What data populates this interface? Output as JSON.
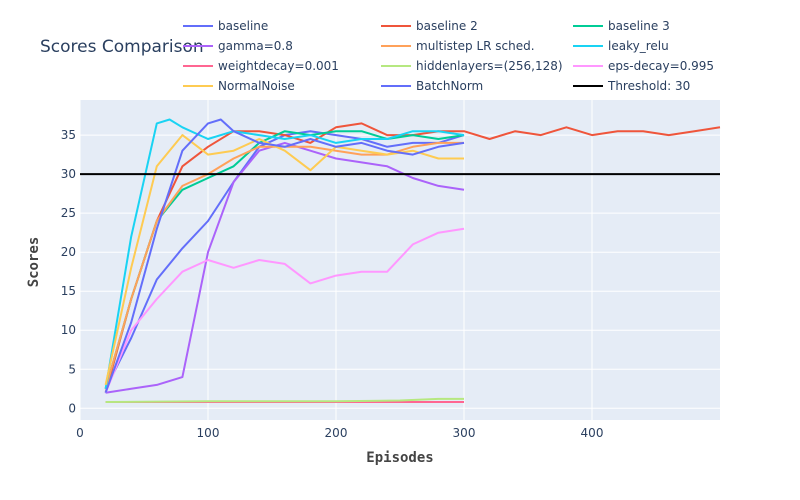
{
  "chart_data": {
    "type": "line",
    "title": "Scores Comparison",
    "xlabel": "Episodes",
    "ylabel": "Scores",
    "xlim": [
      0,
      500
    ],
    "ylim": [
      -1.5,
      39.5
    ],
    "xticks": [
      0,
      100,
      200,
      300,
      400
    ],
    "yticks": [
      0,
      5,
      10,
      15,
      20,
      25,
      30,
      35
    ],
    "grid": true,
    "legend_position": "top",
    "colors": {
      "plot_background": "#e5ecf6",
      "grid": "#ffffff",
      "text": "#2a3f5f"
    },
    "series": [
      {
        "name": "baseline",
        "color": "#636efa",
        "x": [
          20,
          40,
          60,
          80,
          100,
          120,
          140,
          160,
          180,
          200,
          220,
          240,
          260,
          280,
          300
        ],
        "y": [
          2.5,
          9,
          16.5,
          20.5,
          24,
          29,
          33.5,
          35,
          35.5,
          35,
          34.5,
          33.5,
          34,
          34,
          35
        ]
      },
      {
        "name": "baseline 2",
        "color": "#ef553b",
        "x": [
          20,
          40,
          60,
          80,
          100,
          120,
          140,
          160,
          180,
          200,
          220,
          240,
          260,
          280,
          300,
          320,
          340,
          360,
          380,
          400,
          420,
          440,
          460,
          480,
          500
        ],
        "y": [
          2,
          14,
          24,
          31,
          33.5,
          35.5,
          35.5,
          35,
          34,
          36,
          36.5,
          35,
          35,
          35.5,
          35.5,
          34.5,
          35.5,
          35,
          36,
          35,
          35.5,
          35.5,
          35,
          35.5,
          36
        ]
      },
      {
        "name": "baseline 3",
        "color": "#00cc96",
        "x": [
          20,
          40,
          60,
          80,
          100,
          120,
          140,
          160,
          180,
          200,
          220,
          240,
          260,
          280,
          300
        ],
        "y": [
          2.5,
          14,
          24,
          28,
          29.5,
          31,
          34,
          35.5,
          35,
          35.5,
          35.5,
          34.5,
          35,
          34.5,
          35
        ]
      },
      {
        "name": "gamma=0.8",
        "color": "#ab63fa",
        "x": [
          20,
          40,
          60,
          80,
          100,
          120,
          140,
          160,
          180,
          200,
          220,
          240,
          260,
          280,
          300
        ],
        "y": [
          2,
          2.5,
          3,
          4,
          20,
          29,
          33,
          34,
          33,
          32,
          31.5,
          31,
          29.5,
          28.5,
          28
        ]
      },
      {
        "name": "multistep LR sched.",
        "color": "#ffa15a",
        "x": [
          20,
          40,
          60,
          80,
          100,
          120,
          140,
          160,
          180,
          200,
          220,
          240,
          260,
          280,
          300
        ],
        "y": [
          2.5,
          14,
          24,
          28.5,
          30,
          32,
          33.5,
          33.5,
          33.5,
          33,
          32.5,
          32.5,
          33.5,
          34,
          34
        ]
      },
      {
        "name": "leaky_relu",
        "color": "#19d3f3",
        "x": [
          20,
          40,
          60,
          70,
          80,
          100,
          120,
          140,
          160,
          180,
          200,
          220,
          240,
          260,
          280,
          300
        ],
        "y": [
          2.5,
          22,
          36.5,
          37,
          36,
          34.5,
          35.5,
          35,
          34.5,
          35,
          34,
          34.5,
          34.5,
          35.5,
          35.5,
          35
        ]
      },
      {
        "name": "weightdecay=0.001",
        "color": "#ff6692",
        "x": [
          20,
          100,
          200,
          300
        ],
        "y": [
          0.8,
          0.8,
          0.8,
          0.8
        ]
      },
      {
        "name": "hiddenlayers=(256,128)",
        "color": "#b6e880",
        "x": [
          20,
          100,
          200,
          250,
          280,
          300
        ],
        "y": [
          0.8,
          0.9,
          0.9,
          1.0,
          1.2,
          1.2
        ]
      },
      {
        "name": "eps-decay=0.995",
        "color": "#ff97ff",
        "x": [
          20,
          40,
          60,
          80,
          100,
          120,
          140,
          160,
          180,
          200,
          220,
          240,
          260,
          280,
          300
        ],
        "y": [
          2,
          10,
          14,
          17.5,
          19,
          18,
          19,
          18.5,
          16,
          17,
          17.5,
          17.5,
          21,
          22.5,
          23
        ]
      },
      {
        "name": "NormalNoise",
        "color": "#fecb52",
        "x": [
          20,
          40,
          60,
          80,
          100,
          120,
          140,
          160,
          180,
          200,
          220,
          240,
          260,
          280,
          300
        ],
        "y": [
          3,
          18,
          31,
          35,
          32.5,
          33,
          34.5,
          33,
          30.5,
          33.5,
          33,
          32.5,
          33,
          32,
          32
        ]
      },
      {
        "name": "BatchNorm",
        "color": "#636efa",
        "x": [
          20,
          40,
          60,
          80,
          100,
          110,
          120,
          140,
          160,
          180,
          200,
          220,
          240,
          260,
          280,
          300
        ],
        "y": [
          2,
          11,
          23,
          33,
          36.5,
          37,
          35.5,
          34,
          33.5,
          34.5,
          33.5,
          34,
          33,
          32.5,
          33.5,
          34
        ]
      },
      {
        "name": "Threshold: 30",
        "color": "#000000",
        "x": [
          0,
          500
        ],
        "y": [
          30,
          30
        ]
      }
    ]
  }
}
